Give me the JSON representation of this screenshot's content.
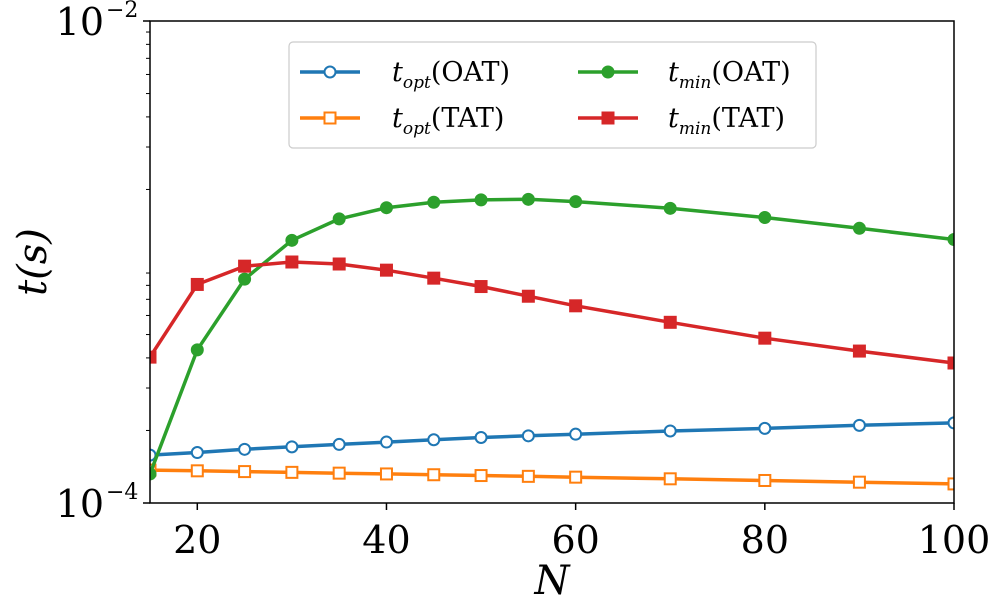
{
  "chart_data": {
    "type": "line",
    "xlabel": "N",
    "ylabel": "t(s)",
    "xlim": [
      15,
      100
    ],
    "ylim": [
      0.0001,
      0.01
    ],
    "yscale": "log",
    "x_ticks": [
      20,
      40,
      60,
      80,
      100
    ],
    "x_tick_labels": [
      "20",
      "40",
      "60",
      "80",
      "100"
    ],
    "y_ticks": [
      {
        "value": 0.0001,
        "base": "10",
        "exponent": "−4"
      },
      {
        "value": 0.01,
        "base": "10",
        "exponent": "−2"
      }
    ],
    "legend_position": "top-center",
    "series": [
      {
        "key": "topt-oat",
        "name": "t_opt(OAT)",
        "var": "t",
        "sub": "opt",
        "suffix": "(OAT)",
        "color": "#1f77b4",
        "marker": "open-circle",
        "x": [
          15,
          20,
          25,
          30,
          35,
          40,
          45,
          50,
          55,
          60,
          70,
          80,
          90,
          100
        ],
        "values": [
          0.000158,
          0.000162,
          0.000167,
          0.000171,
          0.000175,
          0.000179,
          0.000183,
          0.000187,
          0.00019,
          0.000193,
          0.000199,
          0.000204,
          0.00021,
          0.000215
        ]
      },
      {
        "key": "topt-tat",
        "name": "t_opt(TAT)",
        "var": "t",
        "sub": "opt",
        "suffix": "(TAT)",
        "color": "#ff7f0e",
        "marker": "open-square",
        "x": [
          15,
          20,
          25,
          30,
          35,
          40,
          45,
          50,
          55,
          60,
          70,
          80,
          90,
          100
        ],
        "values": [
          0.000137,
          0.000136,
          0.000135,
          0.000134,
          0.000133,
          0.000132,
          0.000131,
          0.00013,
          0.000129,
          0.000128,
          0.000126,
          0.000124,
          0.000122,
          0.00012
        ]
      },
      {
        "key": "tmin-oat",
        "name": "t_min(OAT)",
        "var": "t",
        "sub": "min",
        "suffix": "(OAT)",
        "color": "#2ca02c",
        "marker": "filled-circle",
        "x": [
          15,
          20,
          25,
          30,
          35,
          40,
          45,
          50,
          55,
          60,
          70,
          80,
          90,
          100
        ],
        "values": [
          0.000132,
          0.000432,
          0.000849,
          0.00123,
          0.00151,
          0.00168,
          0.00177,
          0.00181,
          0.00182,
          0.00178,
          0.00167,
          0.00153,
          0.00138,
          0.00124
        ]
      },
      {
        "key": "tmin-tat",
        "name": "t_min(TAT)",
        "var": "t",
        "sub": "min",
        "suffix": "(TAT)",
        "color": "#d62728",
        "marker": "filled-square",
        "x": [
          15,
          20,
          25,
          30,
          35,
          40,
          45,
          50,
          55,
          60,
          70,
          80,
          90,
          100
        ],
        "values": [
          0.000403,
          0.000807,
          0.000961,
          0.001,
          0.000981,
          0.000925,
          0.000857,
          0.000791,
          0.000721,
          0.000658,
          0.000562,
          0.000483,
          0.000427,
          0.000381
        ]
      }
    ]
  }
}
